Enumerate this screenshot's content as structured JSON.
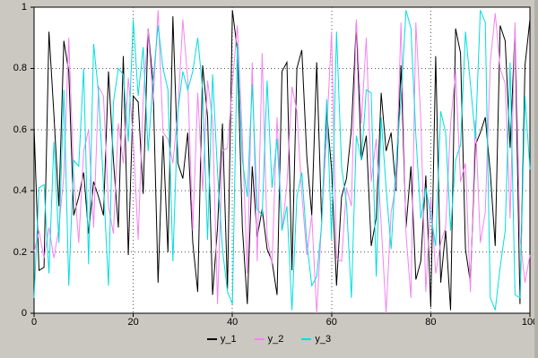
{
  "figure": {
    "bg_color": "#cbc7c1",
    "plot_bg": "#ffffff",
    "frame_color": "#000000",
    "grid_color": "#555555"
  },
  "chart_data": {
    "type": "line",
    "title": "",
    "xlabel": "",
    "ylabel": "",
    "xlim": [
      0,
      100
    ],
    "ylim": [
      0,
      1
    ],
    "grid": true,
    "grid_style": "dotted",
    "legend_position": "bottom-center",
    "x_ticks": [
      0,
      20,
      40,
      60,
      80,
      100
    ],
    "y_ticks": [
      0,
      0.2,
      0.4,
      0.6,
      0.8,
      1
    ],
    "x_tick_labels": [
      "0",
      "20",
      "40",
      "60",
      "80",
      "100"
    ],
    "y_tick_labels": [
      "0",
      "0.2",
      "0.4",
      "0.6",
      "0.8",
      "1"
    ],
    "x": [
      0,
      1,
      2,
      3,
      4,
      5,
      6,
      7,
      8,
      9,
      10,
      11,
      12,
      13,
      14,
      15,
      16,
      17,
      18,
      19,
      20,
      21,
      22,
      23,
      24,
      25,
      26,
      27,
      28,
      29,
      30,
      31,
      32,
      33,
      34,
      35,
      36,
      37,
      38,
      39,
      40,
      41,
      42,
      43,
      44,
      45,
      46,
      47,
      48,
      49,
      50,
      51,
      52,
      53,
      54,
      55,
      56,
      57,
      58,
      59,
      60,
      61,
      62,
      63,
      64,
      65,
      66,
      67,
      68,
      69,
      70,
      71,
      72,
      73,
      74,
      75,
      76,
      77,
      78,
      79,
      80,
      81,
      82,
      83,
      84,
      85,
      86,
      87,
      88,
      89,
      90,
      91,
      92,
      93,
      94,
      95,
      96,
      97,
      98,
      99,
      100
    ],
    "series": [
      {
        "name": "y_1",
        "color": "#000000",
        "values": [
          0.61,
          0.14,
          0.15,
          0.92,
          0.65,
          0.35,
          0.89,
          0.79,
          0.32,
          0.38,
          0.46,
          0.26,
          0.43,
          0.38,
          0.32,
          0.79,
          0.5,
          0.28,
          0.84,
          0.19,
          0.71,
          0.69,
          0.39,
          0.93,
          0.75,
          0.1,
          0.58,
          0.2,
          0.97,
          0.49,
          0.44,
          0.59,
          0.23,
          0.07,
          0.81,
          0.64,
          0.06,
          0.28,
          0.62,
          0.08,
          0.99,
          0.86,
          0.28,
          0.03,
          0.48,
          0.25,
          0.34,
          0.21,
          0.17,
          0.06,
          0.79,
          0.82,
          0.14,
          0.8,
          0.86,
          0.51,
          0.32,
          0.82,
          0.3,
          0.66,
          0.47,
          0.09,
          0.38,
          0.44,
          0.6,
          0.95,
          0.5,
          0.58,
          0.22,
          0.31,
          0.72,
          0.53,
          0.59,
          0.4,
          0.81,
          0.28,
          0.48,
          0.11,
          0.17,
          0.45,
          0.02,
          0.84,
          0.1,
          0.27,
          0.01,
          0.93,
          0.85,
          0.21,
          0.1,
          0.55,
          0.59,
          0.64,
          0.46,
          0.22,
          0.94,
          0.89,
          0.54,
          0.93,
          0.03,
          0.81,
          0.96
        ]
      },
      {
        "name": "y_2",
        "color": "#f583f0",
        "values": [
          0.2,
          0.27,
          0.18,
          0.28,
          0.18,
          0.28,
          0.45,
          0.9,
          0.45,
          0.23,
          0.53,
          0.6,
          0.28,
          0.74,
          0.71,
          0.35,
          0.26,
          0.62,
          0.49,
          0.77,
          0.57,
          0.24,
          0.7,
          0.93,
          0.69,
          0.99,
          0.59,
          0.57,
          0.49,
          0.66,
          0.96,
          0.76,
          0.27,
          0.72,
          0.4,
          0.76,
          0.63,
          0.03,
          0.53,
          0.54,
          0.75,
          0.94,
          0.57,
          0.13,
          0.82,
          0.17,
          0.85,
          0.25,
          0.16,
          0.64,
          0.27,
          0.42,
          0.74,
          0.66,
          0.39,
          0.19,
          0.32,
          0.0,
          0.3,
          0.59,
          0.92,
          0.18,
          0.17,
          0.41,
          0.35,
          0.96,
          0.62,
          0.9,
          0.43,
          0.57,
          0.29,
          0.0,
          0.33,
          0.42,
          0.95,
          0.26,
          0.05,
          0.95,
          0.63,
          0.07,
          0.38,
          0.13,
          0.23,
          0.28,
          0.62,
          0.79,
          0.43,
          0.49,
          0.07,
          0.63,
          0.23,
          0.33,
          0.82,
          0.98,
          0.8,
          0.75,
          0.31,
          0.95,
          0.25,
          0.1,
          0.19
        ]
      },
      {
        "name": "y_3",
        "color": "#00dede",
        "values": [
          0.05,
          0.41,
          0.42,
          0.13,
          0.56,
          0.23,
          0.73,
          0.09,
          0.5,
          0.48,
          0.8,
          0.16,
          0.88,
          0.72,
          0.42,
          0.09,
          0.69,
          0.8,
          0.78,
          0.56,
          0.96,
          0.71,
          0.87,
          0.53,
          0.76,
          0.94,
          0.8,
          0.73,
          0.17,
          0.66,
          0.79,
          0.73,
          0.79,
          0.9,
          0.73,
          0.24,
          0.78,
          0.46,
          0.21,
          0.07,
          0.03,
          0.88,
          0.5,
          0.38,
          0.75,
          0.34,
          0.32,
          0.76,
          0.41,
          0.57,
          0.27,
          0.35,
          0.01,
          0.38,
          0.46,
          0.23,
          0.09,
          0.12,
          0.29,
          0.7,
          0.24,
          0.92,
          0.48,
          0.36,
          0.05,
          0.58,
          0.5,
          0.73,
          0.72,
          0.12,
          0.64,
          0.41,
          0.21,
          0.49,
          0.7,
          0.99,
          0.93,
          0.58,
          0.31,
          0.41,
          0.32,
          0.22,
          0.66,
          0.59,
          0.27,
          0.5,
          0.55,
          0.92,
          0.75,
          0.57,
          0.99,
          0.95,
          0.05,
          0.01,
          0.15,
          0.27,
          0.82,
          0.06,
          0.05,
          0.71,
          0.47
        ]
      }
    ]
  }
}
